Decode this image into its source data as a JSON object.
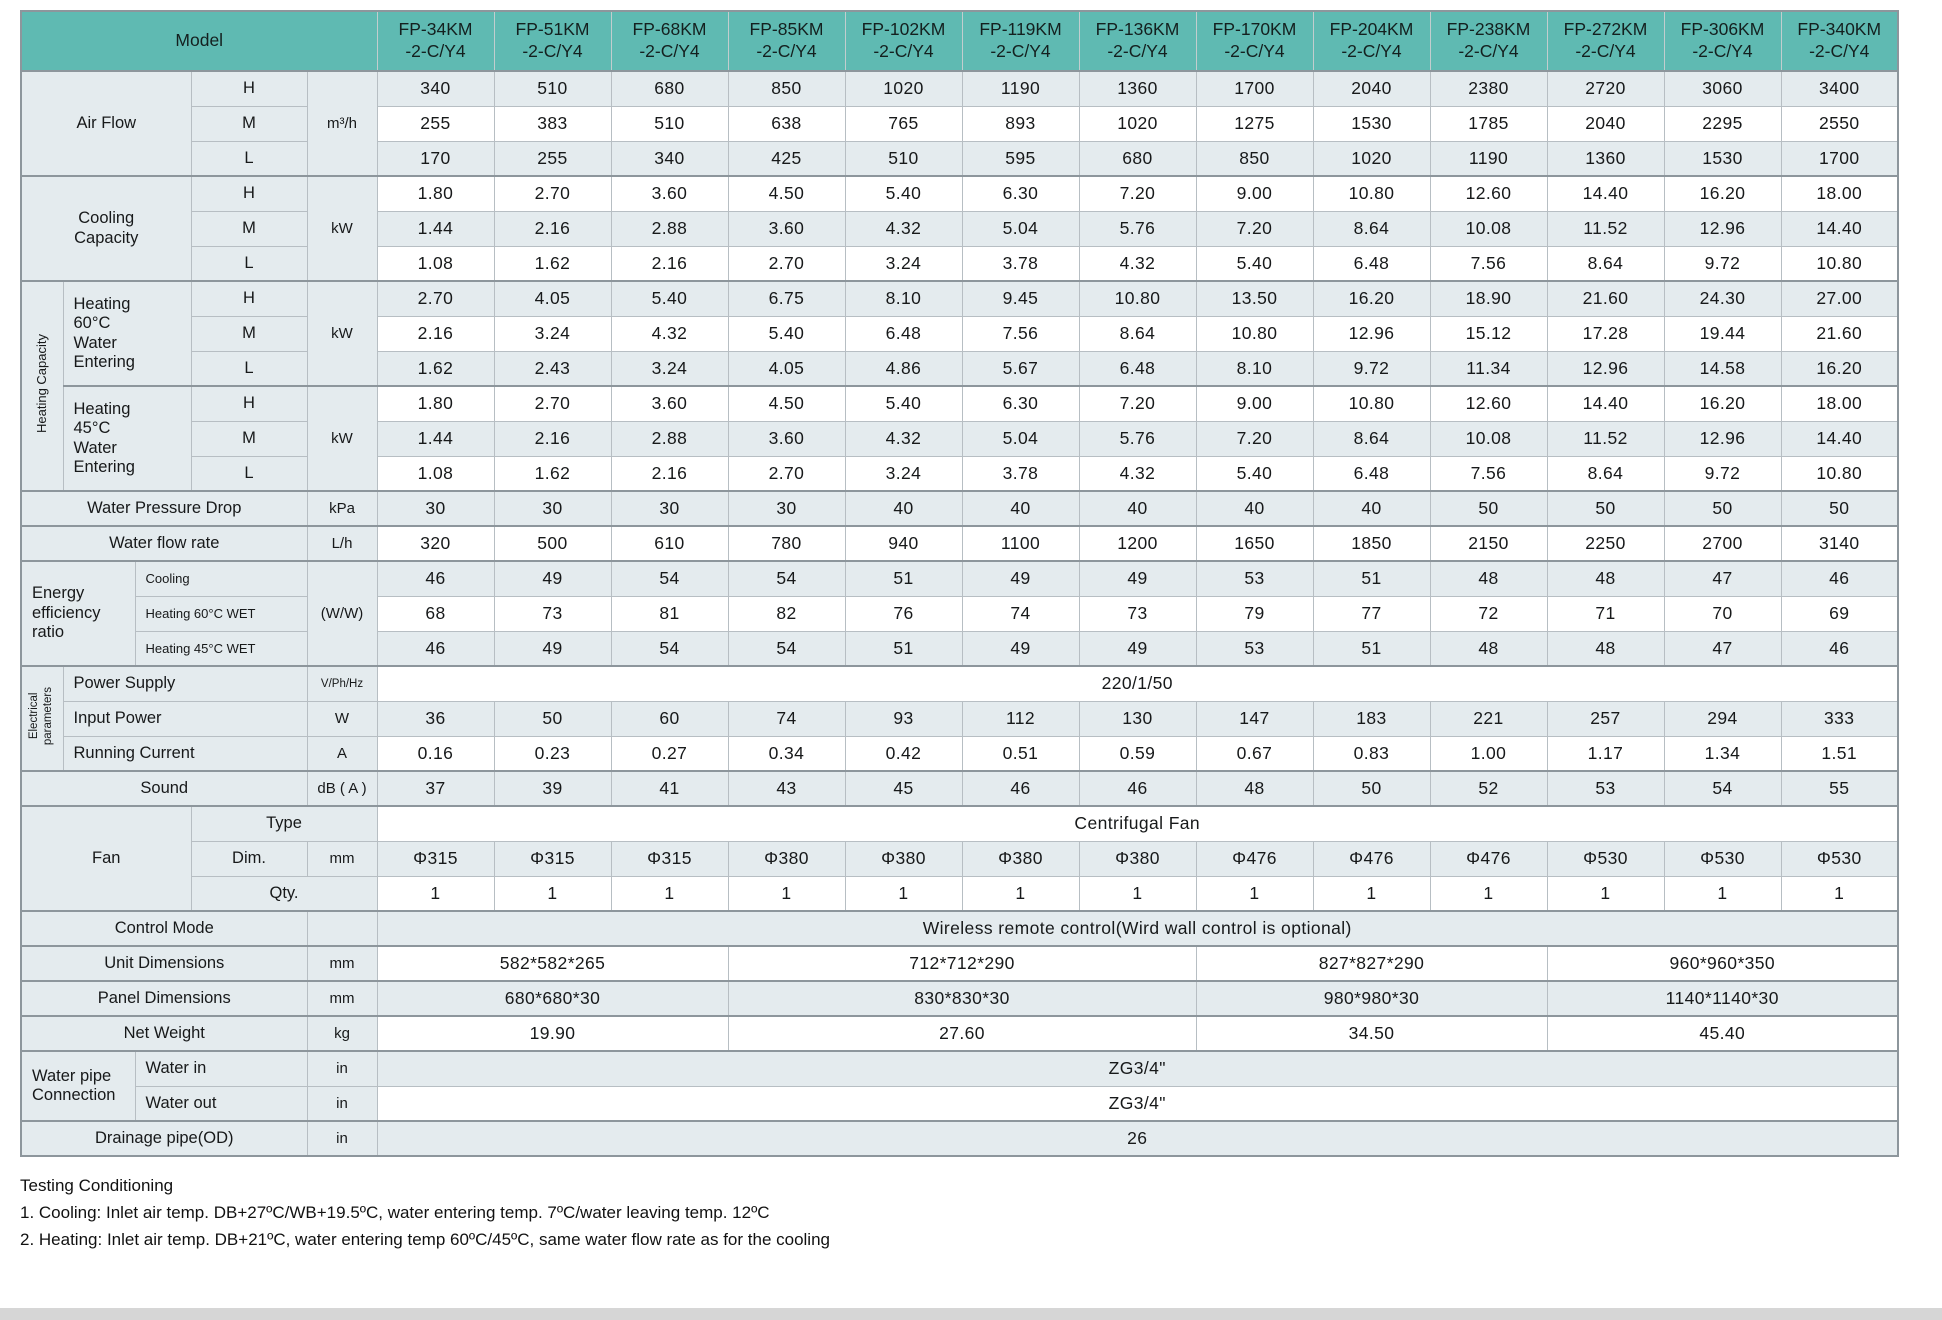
{
  "colors": {
    "header_teal": "#5fbab2",
    "row_shade": "#e4ebee",
    "grid_line": "#b7bec3",
    "section_line": "#8d969c"
  },
  "table": {
    "model_label": "Model",
    "model_suffix": "-2-C/Y4",
    "models": [
      "FP-34KM",
      "FP-51KM",
      "FP-68KM",
      "FP-85KM",
      "FP-102KM",
      "FP-119KM",
      "FP-136KM",
      "FP-170KM",
      "FP-204KM",
      "FP-238KM",
      "FP-272KM",
      "FP-306KM",
      "FP-340KM"
    ],
    "levels": [
      "H",
      "M",
      "L"
    ],
    "air_flow": {
      "label": "Air Flow",
      "unit": "m³/h",
      "H": [
        "340",
        "510",
        "680",
        "850",
        "1020",
        "1190",
        "1360",
        "1700",
        "2040",
        "2380",
        "2720",
        "3060",
        "3400"
      ],
      "M": [
        "255",
        "383",
        "510",
        "638",
        "765",
        "893",
        "1020",
        "1275",
        "1530",
        "1785",
        "2040",
        "2295",
        "2550"
      ],
      "L": [
        "170",
        "255",
        "340",
        "425",
        "510",
        "595",
        "680",
        "850",
        "1020",
        "1190",
        "1360",
        "1530",
        "1700"
      ]
    },
    "cooling_capacity": {
      "label": "Cooling\nCapacity",
      "unit": "kW",
      "H": [
        "1.80",
        "2.70",
        "3.60",
        "4.50",
        "5.40",
        "6.30",
        "7.20",
        "9.00",
        "10.80",
        "12.60",
        "14.40",
        "16.20",
        "18.00"
      ],
      "M": [
        "1.44",
        "2.16",
        "2.88",
        "3.60",
        "4.32",
        "5.04",
        "5.76",
        "7.20",
        "8.64",
        "10.08",
        "11.52",
        "12.96",
        "14.40"
      ],
      "L": [
        "1.08",
        "1.62",
        "2.16",
        "2.70",
        "3.24",
        "3.78",
        "4.32",
        "5.40",
        "6.48",
        "7.56",
        "8.64",
        "9.72",
        "10.80"
      ]
    },
    "heating_capacity": {
      "group_label": "Heating Capacity",
      "heating_60": {
        "label": "Heating\n60°C\nWater\nEntering",
        "unit": "kW",
        "H": [
          "2.70",
          "4.05",
          "5.40",
          "6.75",
          "8.10",
          "9.45",
          "10.80",
          "13.50",
          "16.20",
          "18.90",
          "21.60",
          "24.30",
          "27.00"
        ],
        "M": [
          "2.16",
          "3.24",
          "4.32",
          "5.40",
          "6.48",
          "7.56",
          "8.64",
          "10.80",
          "12.96",
          "15.12",
          "17.28",
          "19.44",
          "21.60"
        ],
        "L": [
          "1.62",
          "2.43",
          "3.24",
          "4.05",
          "4.86",
          "5.67",
          "6.48",
          "8.10",
          "9.72",
          "11.34",
          "12.96",
          "14.58",
          "16.20"
        ]
      },
      "heating_45": {
        "label": "Heating\n45°C\nWater\nEntering",
        "unit": "kW",
        "H": [
          "1.80",
          "2.70",
          "3.60",
          "4.50",
          "5.40",
          "6.30",
          "7.20",
          "9.00",
          "10.80",
          "12.60",
          "14.40",
          "16.20",
          "18.00"
        ],
        "M": [
          "1.44",
          "2.16",
          "2.88",
          "3.60",
          "4.32",
          "5.04",
          "5.76",
          "7.20",
          "8.64",
          "10.08",
          "11.52",
          "12.96",
          "14.40"
        ],
        "L": [
          "1.08",
          "1.62",
          "2.16",
          "2.70",
          "3.24",
          "3.78",
          "4.32",
          "5.40",
          "6.48",
          "7.56",
          "8.64",
          "9.72",
          "10.80"
        ]
      }
    },
    "water_pressure_drop": {
      "label": "Water Pressure Drop",
      "unit": "kPa",
      "values": [
        "30",
        "30",
        "30",
        "30",
        "40",
        "40",
        "40",
        "40",
        "40",
        "50",
        "50",
        "50",
        "50"
      ]
    },
    "water_flow_rate": {
      "label": "Water flow rate",
      "unit": "L/h",
      "values": [
        "320",
        "500",
        "610",
        "780",
        "940",
        "1100",
        "1200",
        "1650",
        "1850",
        "2150",
        "2250",
        "2700",
        "3140"
      ]
    },
    "eer": {
      "label": "Energy\nefficiency\nratio",
      "unit": "(W/W)",
      "rows": [
        {
          "label": "Cooling",
          "values": [
            "46",
            "49",
            "54",
            "54",
            "51",
            "49",
            "49",
            "53",
            "51",
            "48",
            "48",
            "47",
            "46"
          ]
        },
        {
          "label": "Heating 60°C WET",
          "values": [
            "68",
            "73",
            "81",
            "82",
            "76",
            "74",
            "73",
            "79",
            "77",
            "72",
            "71",
            "70",
            "69"
          ]
        },
        {
          "label": "Heating 45°C WET",
          "values": [
            "46",
            "49",
            "54",
            "54",
            "51",
            "49",
            "49",
            "53",
            "51",
            "48",
            "48",
            "47",
            "46"
          ]
        }
      ]
    },
    "electrical": {
      "group_label": "Electrical\nparameters",
      "power_supply": {
        "label": "Power Supply",
        "unit": "V/Ph/Hz",
        "value": "220/1/50"
      },
      "input_power": {
        "label": "Input Power",
        "unit": "W",
        "values": [
          "36",
          "50",
          "60",
          "74",
          "93",
          "112",
          "130",
          "147",
          "183",
          "221",
          "257",
          "294",
          "333"
        ]
      },
      "running_current": {
        "label": "Running Current",
        "unit": "A",
        "values": [
          "0.16",
          "0.23",
          "0.27",
          "0.34",
          "0.42",
          "0.51",
          "0.59",
          "0.67",
          "0.83",
          "1.00",
          "1.17",
          "1.34",
          "1.51"
        ]
      }
    },
    "sound": {
      "label": "Sound",
      "unit": "dB ( A )",
      "values": [
        "37",
        "39",
        "41",
        "43",
        "45",
        "46",
        "46",
        "48",
        "50",
        "52",
        "53",
        "54",
        "55"
      ]
    },
    "fan": {
      "label": "Fan",
      "type": {
        "label": "Type",
        "value": "Centrifugal Fan"
      },
      "dim": {
        "label": "Dim.",
        "unit": "mm",
        "values": [
          "Φ315",
          "Φ315",
          "Φ315",
          "Φ380",
          "Φ380",
          "Φ380",
          "Φ380",
          "Φ476",
          "Φ476",
          "Φ476",
          "Φ530",
          "Φ530",
          "Φ530"
        ]
      },
      "qty": {
        "label": "Qty.",
        "values": [
          "1",
          "1",
          "1",
          "1",
          "1",
          "1",
          "1",
          "1",
          "1",
          "1",
          "1",
          "1",
          "1"
        ]
      }
    },
    "control_mode": {
      "label": "Control Mode",
      "value": "Wireless remote control(Wird wall control is optional)"
    },
    "unit_dimensions": {
      "label": "Unit Dimensions",
      "unit": "mm",
      "groups": [
        {
          "span": 3,
          "value": "582*582*265"
        },
        {
          "span": 4,
          "value": "712*712*290"
        },
        {
          "span": 3,
          "value": "827*827*290"
        },
        {
          "span": 3,
          "value": "960*960*350"
        }
      ]
    },
    "panel_dimensions": {
      "label": "Panel Dimensions",
      "unit": "mm",
      "groups": [
        {
          "span": 3,
          "value": "680*680*30"
        },
        {
          "span": 4,
          "value": "830*830*30"
        },
        {
          "span": 3,
          "value": "980*980*30"
        },
        {
          "span": 3,
          "value": "1140*1140*30"
        }
      ]
    },
    "net_weight": {
      "label": "Net Weight",
      "unit": "kg",
      "groups": [
        {
          "span": 3,
          "value": "19.90"
        },
        {
          "span": 4,
          "value": "27.60"
        },
        {
          "span": 3,
          "value": "34.50"
        },
        {
          "span": 3,
          "value": "45.40"
        }
      ]
    },
    "water_pipe": {
      "group_label": "Water pipe\nConnection",
      "water_in": {
        "label": "Water in",
        "unit": "in",
        "value": "ZG3/4\""
      },
      "water_out": {
        "label": "Water out",
        "unit": "in",
        "value": "ZG3/4\""
      }
    },
    "drainage": {
      "label": "Drainage pipe(OD)",
      "unit": "in",
      "value": "26"
    }
  },
  "page": {
    "footer": {
      "title": "Testing Conditioning",
      "note1": "1. Cooling: Inlet air temp. DB+27ºC/WB+19.5ºC, water entering temp. 7ºC/water leaving temp. 12ºC",
      "note2": "2. Heating: Inlet air temp. DB+21ºC, water entering temp 60ºC/45ºC, same water flow rate as for the cooling"
    }
  }
}
